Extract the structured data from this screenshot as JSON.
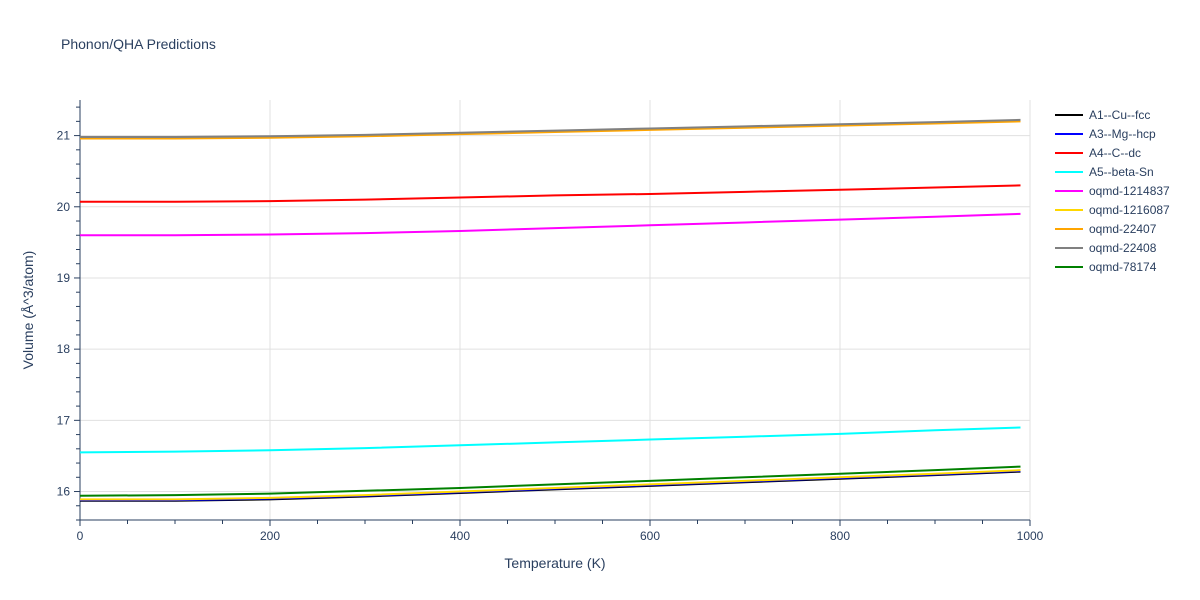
{
  "chart_data": {
    "type": "line",
    "title": "Phonon/QHA Predictions",
    "xlabel": "Temperature (K)",
    "ylabel": "Volume (Å^3/atom)",
    "xlim": [
      0,
      1000
    ],
    "ylim": [
      15.6,
      21.5
    ],
    "xticks": [
      0,
      200,
      400,
      600,
      800,
      1000
    ],
    "yticks": [
      16,
      17,
      18,
      19,
      20,
      21
    ],
    "grid": true,
    "legend_position": "right",
    "x": [
      0,
      100,
      200,
      300,
      400,
      500,
      600,
      700,
      800,
      900,
      990
    ],
    "series": [
      {
        "name": "A1--Cu--fcc",
        "color": "#000000",
        "values": [
          15.87,
          15.87,
          15.89,
          15.93,
          15.98,
          16.03,
          16.08,
          16.13,
          16.18,
          16.23,
          16.28
        ]
      },
      {
        "name": "A3--Mg--hcp",
        "color": "#0000ff",
        "values": [
          15.88,
          15.88,
          15.9,
          15.94,
          15.99,
          16.04,
          16.09,
          16.14,
          16.19,
          16.24,
          16.29
        ]
      },
      {
        "name": "A4--C--dc",
        "color": "#ff0000",
        "values": [
          20.07,
          20.07,
          20.08,
          20.1,
          20.13,
          20.16,
          20.18,
          20.21,
          20.24,
          20.27,
          20.3
        ]
      },
      {
        "name": "A5--beta-Sn",
        "color": "#00ffff",
        "values": [
          16.55,
          16.56,
          16.58,
          16.61,
          16.65,
          16.69,
          16.73,
          16.77,
          16.81,
          16.86,
          16.9
        ]
      },
      {
        "name": "oqmd-1214837",
        "color": "#ff00ff",
        "values": [
          19.6,
          19.6,
          19.61,
          19.63,
          19.66,
          19.7,
          19.74,
          19.78,
          19.82,
          19.86,
          19.9
        ]
      },
      {
        "name": "oqmd-1216087",
        "color": "#ffd700",
        "values": [
          15.89,
          15.89,
          15.91,
          15.95,
          16.0,
          16.05,
          16.1,
          16.15,
          16.2,
          16.25,
          16.3
        ]
      },
      {
        "name": "oqmd-22407",
        "color": "#ffa500",
        "values": [
          20.96,
          20.96,
          20.97,
          20.99,
          21.02,
          21.05,
          21.08,
          21.11,
          21.14,
          21.17,
          21.2
        ]
      },
      {
        "name": "oqmd-22408",
        "color": "#808080",
        "values": [
          20.98,
          20.98,
          20.99,
          21.01,
          21.04,
          21.07,
          21.1,
          21.13,
          21.16,
          21.19,
          21.22
        ]
      },
      {
        "name": "oqmd-78174",
        "color": "#008000",
        "values": [
          15.94,
          15.95,
          15.97,
          16.01,
          16.05,
          16.1,
          16.15,
          16.2,
          16.25,
          16.3,
          16.35
        ]
      }
    ]
  }
}
